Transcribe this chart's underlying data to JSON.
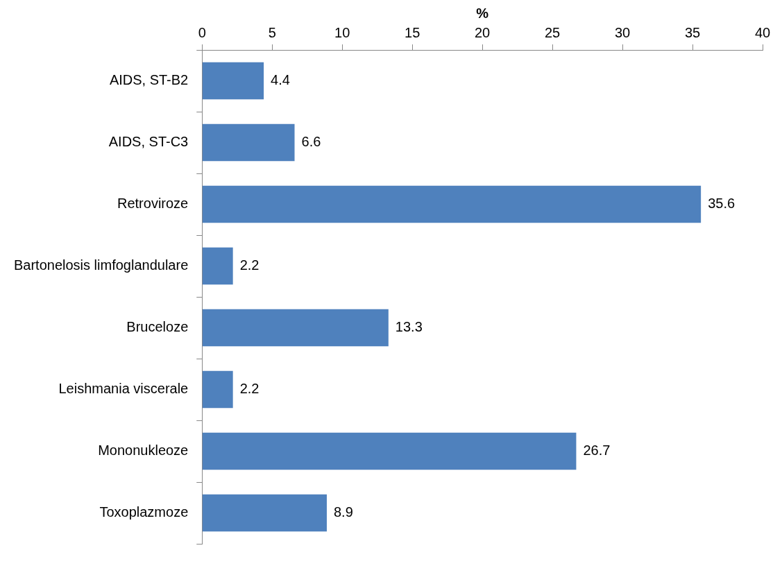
{
  "chart_data": {
    "type": "bar",
    "orientation": "horizontal",
    "xlabel": "%",
    "categories": [
      "AIDS, ST-B2",
      "AIDS, ST-C3",
      "Retroviroze",
      "Bartonelosis limfoglandulare",
      "Bruceloze",
      "Leishmania viscerale",
      "Mononukleoze",
      "Toxoplazmoze"
    ],
    "values": [
      4.4,
      6.6,
      35.6,
      2.2,
      13.3,
      2.2,
      26.7,
      8.9
    ],
    "color": "#4f81bd",
    "xlim": [
      0,
      40
    ],
    "xticks": [
      0,
      5,
      10,
      15,
      20,
      25,
      30,
      35,
      40
    ],
    "grid": false,
    "legend": false,
    "data_labels": true
  }
}
